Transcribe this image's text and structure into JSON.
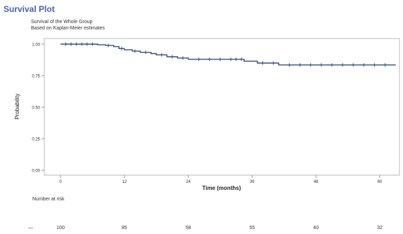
{
  "page": {
    "title": "Survival Plot",
    "subtitle1": "Survival of the Whole Group",
    "subtitle2": "Based on Kaplan-Meier estimates",
    "risk_title": "Number at risk",
    "risk_row_label": "—"
  },
  "colors": {
    "curve": "#3a4d7a",
    "title": "#4a5fa8",
    "frame": "#bbbbbb"
  },
  "chart_data": {
    "type": "line",
    "xlabel": "Time (months)",
    "ylabel": "Probability",
    "xlim": [
      0,
      63
    ],
    "ylim": [
      0,
      1
    ],
    "xticks": [
      0,
      12,
      24,
      36,
      48,
      60
    ],
    "xtick_labels": [
      "0",
      "12",
      "24",
      "36",
      "48",
      "60"
    ],
    "yticks": [
      0,
      0.25,
      0.5,
      0.75,
      1.0
    ],
    "ytick_labels": [
      "0.00",
      "0.25",
      "0.50",
      "0.75",
      "1.00"
    ],
    "grid": false,
    "series": [
      {
        "step_x": [
          0,
          6,
          7,
          8.5,
          10,
          11,
          12,
          13.5,
          15,
          17,
          18,
          20,
          22,
          24,
          30,
          34.5,
          37,
          39,
          41,
          63
        ],
        "step_y": [
          1.0,
          1.0,
          0.995,
          0.99,
          0.98,
          0.965,
          0.955,
          0.945,
          0.935,
          0.925,
          0.915,
          0.9,
          0.89,
          0.88,
          0.88,
          0.865,
          0.85,
          0.85,
          0.835,
          0.835
        ],
        "censor_x": [
          1,
          2,
          3,
          4,
          5,
          6,
          9,
          11.5,
          14,
          16,
          19,
          21,
          23,
          26,
          28,
          30,
          32,
          33,
          34,
          38,
          40,
          43,
          45,
          47,
          49,
          51,
          53,
          55,
          57,
          59,
          61
        ],
        "censor_y": [
          1.0,
          1.0,
          1.0,
          1.0,
          1.0,
          1.0,
          0.99,
          0.965,
          0.945,
          0.935,
          0.915,
          0.9,
          0.89,
          0.88,
          0.88,
          0.88,
          0.88,
          0.88,
          0.88,
          0.85,
          0.85,
          0.835,
          0.835,
          0.835,
          0.835,
          0.835,
          0.835,
          0.835,
          0.835,
          0.835,
          0.835
        ]
      }
    ],
    "risk_table": {
      "times": [
        0,
        12,
        24,
        36,
        48,
        60
      ],
      "values": [
        "100",
        "85",
        "58",
        "55",
        "40",
        "32"
      ]
    }
  }
}
